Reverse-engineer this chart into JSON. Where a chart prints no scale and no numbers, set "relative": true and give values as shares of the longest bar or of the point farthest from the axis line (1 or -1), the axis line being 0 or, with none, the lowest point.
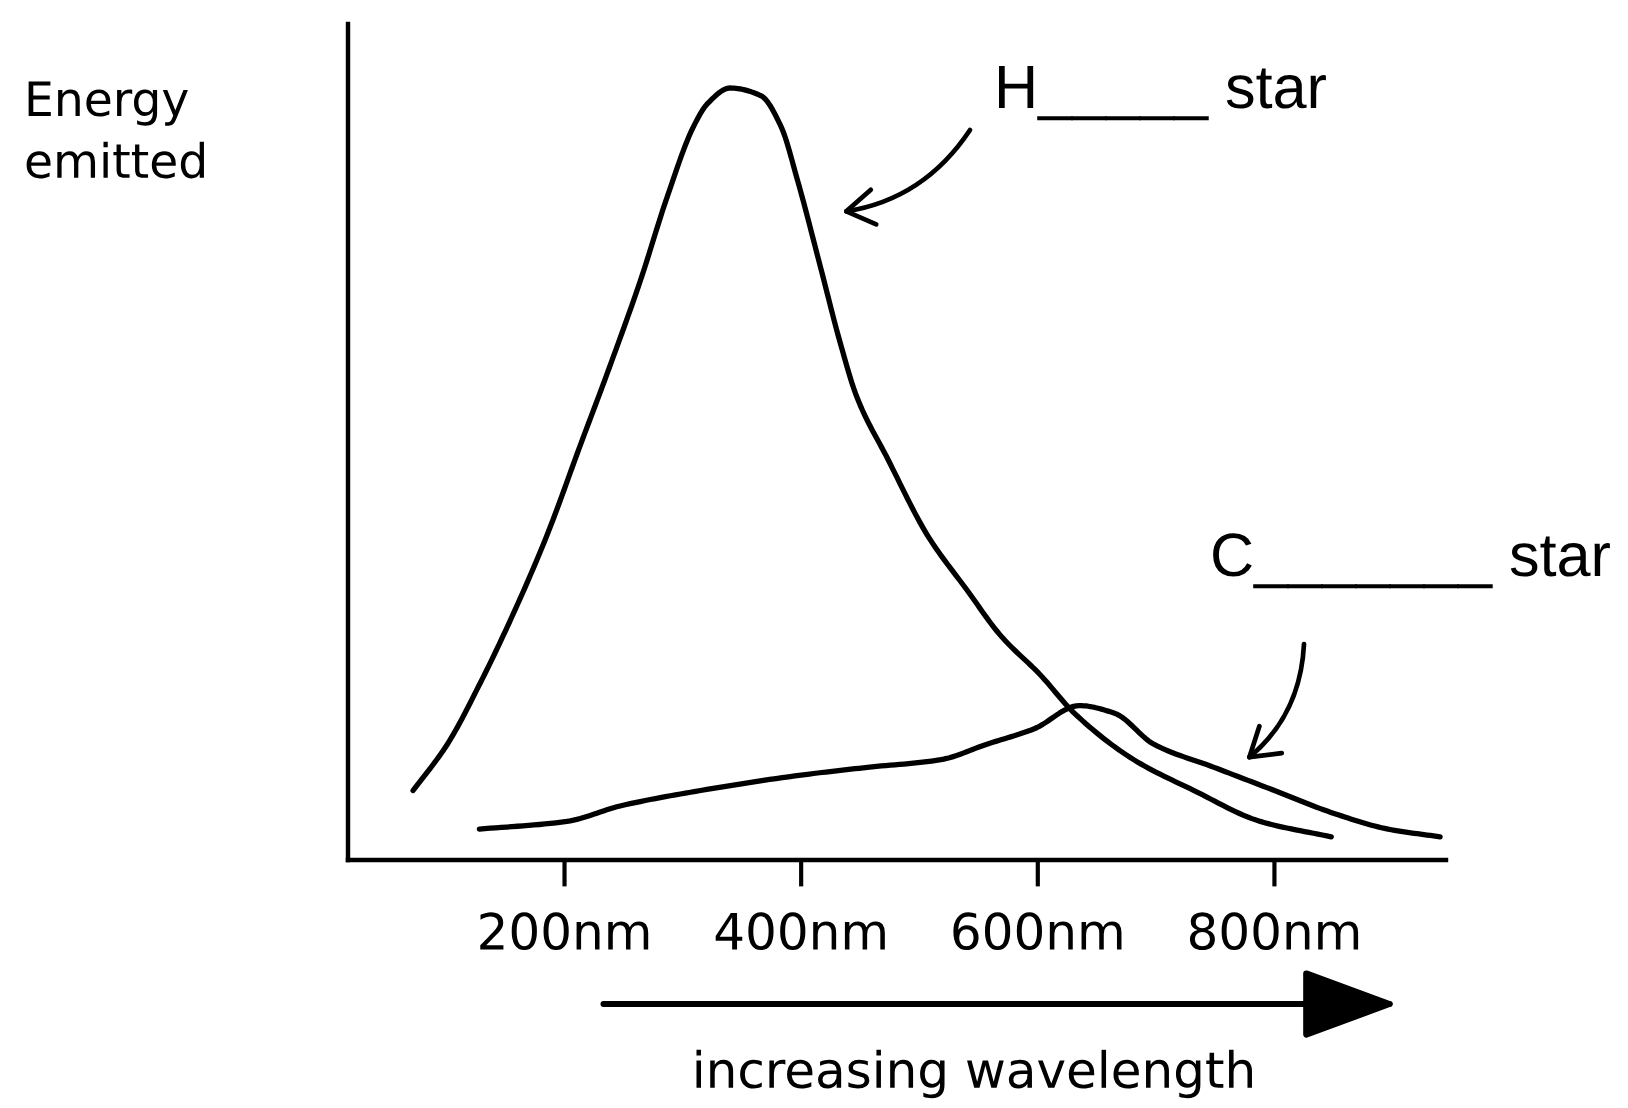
{
  "chart_data": {
    "type": "line",
    "xlabel": "increasing wavelength",
    "ylabel": "Energy emitted",
    "relative": true,
    "tick_labels": "x",
    "grid": false,
    "marker": "none",
    "line_style": "solid",
    "xlim": [
      17,
      945
    ],
    "xticks": [
      {
        "value": 200,
        "label": "200nm"
      },
      {
        "value": 400,
        "label": "400nm"
      },
      {
        "value": 600,
        "label": "600nm"
      },
      {
        "value": 800,
        "label": "800nm"
      }
    ],
    "series": [
      {
        "color": "#000000",
        "x": [
          72,
          101,
          129,
          157,
          185,
          214,
          236,
          264,
          287,
          309,
          321,
          340,
          366,
          383,
          397,
          416,
          433,
          447,
          473,
          507,
          540,
          569,
          602,
          631,
          681,
          732,
          788,
          848
        ],
        "values": [
          0.09,
          0.15,
          0.23,
          0.32,
          0.42,
          0.54,
          0.63,
          0.75,
          0.86,
          0.95,
          0.98,
          1.0,
          0.99,
          0.95,
          0.88,
          0.77,
          0.67,
          0.6,
          0.52,
          0.42,
          0.35,
          0.29,
          0.24,
          0.19,
          0.13,
          0.09,
          0.05,
          0.03
        ]
      },
      {
        "color": "#000000",
        "x": [
          128,
          202,
          247,
          315,
          400,
          456,
          518,
          557,
          597,
          635,
          665,
          698,
          749,
          800,
          851,
          896,
          940
        ],
        "values": [
          0.04,
          0.05,
          0.07,
          0.09,
          0.11,
          0.12,
          0.13,
          0.15,
          0.17,
          0.2,
          0.19,
          0.15,
          0.12,
          0.09,
          0.06,
          0.04,
          0.03
        ]
      }
    ],
    "annotations": [
      "H_____ star",
      "C_______ star"
    ]
  }
}
